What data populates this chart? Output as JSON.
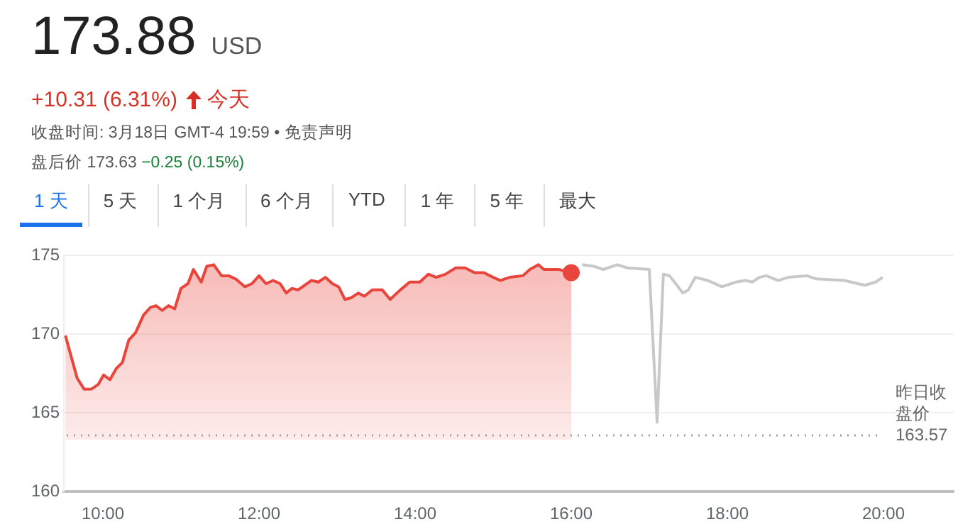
{
  "chart_data": {
    "type": "line",
    "title": "173.88 USD",
    "subtitle": "+10.31 (6.31%)",
    "annotations": [
      "今天",
      "收盘时间: 3月18日 GMT-4 19:59 • 免责声明",
      "盘后价 173.63",
      "−0.25 (0.15%)",
      "1 天",
      "5 天",
      "1 个月",
      "6 个月",
      "YTD",
      "1 年",
      "5 年",
      "最大"
    ],
    "series": [
      {
        "type": "area",
        "color": "#e8453c",
        "x": [
          9.52,
          9.67,
          9.76,
          9.85,
          9.94,
          10.01,
          10.09,
          10.17,
          10.25,
          10.33,
          10.42,
          10.52,
          10.61,
          10.68,
          10.76,
          10.84,
          10.92,
          11.0,
          11.09,
          11.16,
          11.26,
          11.33,
          11.42,
          11.52,
          11.61,
          11.7,
          11.82,
          11.91,
          12.0,
          12.09,
          12.18,
          12.27,
          12.35,
          12.42,
          12.5,
          12.67,
          12.76,
          12.85,
          12.94,
          13.02,
          13.1,
          13.18,
          13.27,
          13.35,
          13.45,
          13.58,
          13.68,
          13.81,
          13.93,
          14.06,
          14.17,
          14.27,
          14.39,
          14.52,
          14.64,
          14.76,
          14.88,
          15.0,
          15.09,
          15.21,
          15.38,
          15.47,
          15.58,
          15.65,
          15.84,
          16.0
        ],
        "values": [
          169.9,
          167.2,
          166.5,
          166.5,
          166.8,
          167.4,
          167.1,
          167.8,
          168.2,
          169.6,
          170.1,
          171.2,
          171.7,
          171.8,
          171.5,
          171.8,
          171.6,
          172.9,
          173.2,
          174.1,
          173.3,
          174.3,
          174.4,
          173.7,
          173.7,
          173.5,
          173.0,
          173.2,
          173.7,
          173.2,
          173.4,
          173.2,
          172.6,
          172.9,
          172.8,
          173.4,
          173.3,
          173.6,
          173.2,
          173.0,
          172.2,
          172.3,
          172.6,
          172.4,
          172.8,
          172.8,
          172.2,
          172.8,
          173.3,
          173.3,
          173.8,
          173.6,
          173.8,
          174.2,
          174.2,
          173.9,
          173.9,
          173.6,
          173.4,
          173.6,
          173.7,
          174.1,
          174.4,
          174.1,
          174.1,
          173.9
        ]
      },
      {
        "color": "#c8c8c8",
        "x": [
          16.14,
          16.29,
          16.41,
          16.59,
          16.72,
          17.0,
          17.1,
          17.18,
          17.26,
          17.43,
          17.5,
          17.59,
          17.75,
          17.93,
          18.11,
          18.23,
          18.32,
          18.41,
          18.5,
          18.65,
          18.78,
          19.02,
          19.14,
          19.5,
          19.76,
          19.9,
          19.99
        ],
        "values": [
          174.4,
          174.3,
          174.1,
          174.4,
          174.2,
          174.1,
          164.4,
          173.8,
          173.7,
          172.6,
          172.8,
          173.6,
          173.4,
          173.0,
          173.3,
          173.4,
          173.3,
          173.6,
          173.7,
          173.4,
          173.6,
          173.7,
          173.5,
          173.4,
          173.1,
          173.3,
          173.6
        ]
      }
    ],
    "xlim": [
      9.5,
      20.9
    ],
    "xticks": [
      {
        "value": 10,
        "label": "10:00"
      },
      {
        "value": 12,
        "label": "12:00"
      },
      {
        "value": 14,
        "label": "14:00"
      },
      {
        "value": 16,
        "label": "16:00"
      },
      {
        "value": 18,
        "label": "18:00"
      },
      {
        "value": 20,
        "label": "20:00"
      }
    ],
    "ylim": [
      160,
      175
    ],
    "yticks": [
      160,
      165,
      170,
      175
    ],
    "ref_lines": [
      {
        "axis": "y",
        "value": 163.57,
        "label": "昨日收盘价 163.57",
        "line_style": "dotted",
        "color": "#9e9e9e"
      }
    ],
    "grid": "y",
    "legend": false,
    "marker": "none",
    "line_style": "solid"
  }
}
